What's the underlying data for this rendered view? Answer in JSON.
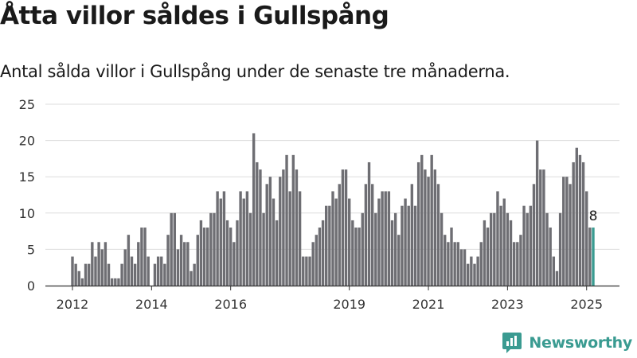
{
  "header": {
    "title": "Åtta villor såldes i Gullspång",
    "subtitle": "Antal sålda villor i Gullspång under de senaste tre månaderna."
  },
  "brand": {
    "name": "Newsworthy"
  },
  "colors": {
    "bar": "#6e6e73",
    "highlight": "#3a9b91",
    "grid": "#dcdcdc",
    "axis": "#333333",
    "brand": "#3a9b91"
  },
  "chart_data": {
    "type": "bar",
    "title": "",
    "xlabel": "",
    "ylabel": "",
    "ylim": [
      0,
      25
    ],
    "yticks": [
      0,
      5,
      10,
      15,
      20,
      25
    ],
    "grid": true,
    "start": "2012-01",
    "highlight_last": true,
    "last_value_label": "8",
    "xticks": [
      {
        "label": "2012",
        "month": "2012-01"
      },
      {
        "label": "2014",
        "month": "2014-01"
      },
      {
        "label": "2016",
        "month": "2016-01"
      },
      {
        "label": "2019",
        "month": "2019-01"
      },
      {
        "label": "2021",
        "month": "2021-01"
      },
      {
        "label": "2023",
        "month": "2023-01"
      },
      {
        "label": "2025",
        "month": "2025-01"
      }
    ],
    "values": [
      4,
      3,
      2,
      1,
      3,
      3,
      6,
      4,
      6,
      5,
      6,
      3,
      1,
      1,
      1,
      3,
      5,
      7,
      4,
      3,
      6,
      8,
      8,
      4,
      0,
      3,
      4,
      4,
      3,
      7,
      10,
      10,
      5,
      7,
      6,
      6,
      2,
      3,
      7,
      9,
      8,
      8,
      10,
      10,
      13,
      12,
      13,
      9,
      8,
      6,
      9,
      13,
      12,
      13,
      10,
      21,
      17,
      16,
      10,
      14,
      15,
      12,
      9,
      15,
      16,
      18,
      13,
      18,
      16,
      13,
      4,
      4,
      4,
      6,
      7,
      8,
      9,
      11,
      11,
      13,
      12,
      14,
      16,
      16,
      12,
      9,
      8,
      8,
      10,
      14,
      17,
      14,
      10,
      12,
      13,
      13,
      13,
      9,
      10,
      7,
      11,
      12,
      11,
      14,
      11,
      17,
      18,
      16,
      15,
      18,
      16,
      14,
      10,
      7,
      6,
      8,
      6,
      6,
      5,
      5,
      3,
      4,
      3,
      4,
      6,
      9,
      8,
      10,
      10,
      13,
      11,
      12,
      10,
      9,
      6,
      6,
      7,
      11,
      10,
      11,
      14,
      20,
      16,
      16,
      10,
      8,
      4,
      2,
      10,
      15,
      15,
      14,
      17,
      19,
      18,
      17,
      13,
      8,
      8
    ]
  }
}
